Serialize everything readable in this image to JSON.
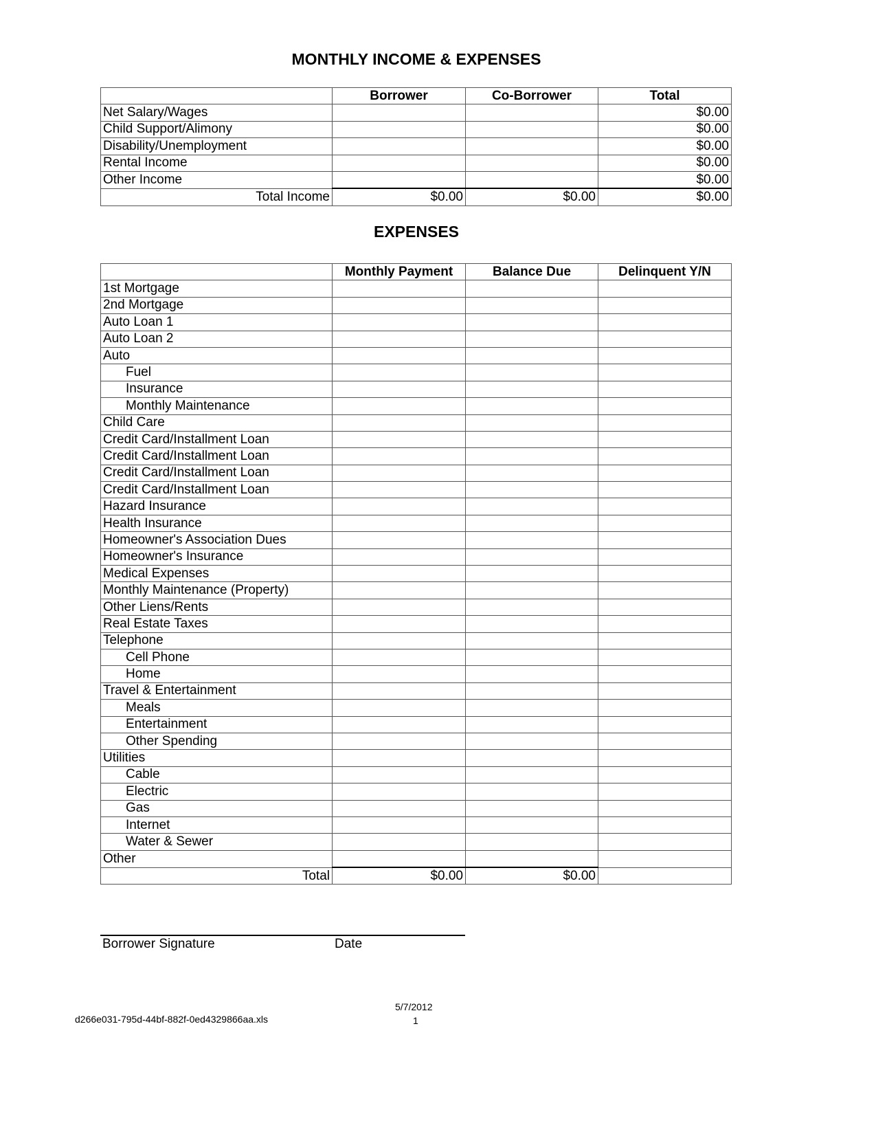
{
  "title": "MONTHLY INCOME & EXPENSES",
  "income": {
    "headers": [
      "",
      "Borrower",
      "Co-Borrower",
      "Total"
    ],
    "rows": [
      {
        "label": "Net Salary/Wages",
        "borrower": "",
        "co_borrower": "",
        "total": "$0.00"
      },
      {
        "label": "Child Support/Alimony",
        "borrower": "",
        "co_borrower": "",
        "total": "$0.00"
      },
      {
        "label": "Disability/Unemployment",
        "borrower": "",
        "co_borrower": "",
        "total": "$0.00"
      },
      {
        "label": "Rental Income",
        "borrower": "",
        "co_borrower": "",
        "total": "$0.00"
      },
      {
        "label": "Other Income",
        "borrower": "",
        "co_borrower": "",
        "total": "$0.00"
      }
    ],
    "total_row": {
      "label": "Total Income",
      "borrower": "$0.00",
      "co_borrower": "$0.00",
      "total": "$0.00"
    }
  },
  "expenses": {
    "title": "EXPENSES",
    "headers": [
      "",
      "Monthly Payment",
      "Balance Due",
      "Delinquent Y/N"
    ],
    "rows": [
      {
        "label": "1st Mortgage",
        "indent": false
      },
      {
        "label": "2nd Mortgage",
        "indent": false
      },
      {
        "label": "Auto Loan 1",
        "indent": false
      },
      {
        "label": "Auto Loan 2",
        "indent": false
      },
      {
        "label": "Auto",
        "indent": false
      },
      {
        "label": "Fuel",
        "indent": true
      },
      {
        "label": "Insurance",
        "indent": true
      },
      {
        "label": "Monthly Maintenance",
        "indent": true
      },
      {
        "label": "Child Care",
        "indent": false
      },
      {
        "label": "Credit Card/Installment Loan",
        "indent": false
      },
      {
        "label": "Credit Card/Installment Loan",
        "indent": false
      },
      {
        "label": "Credit Card/Installment Loan",
        "indent": false
      },
      {
        "label": "Credit Card/Installment Loan",
        "indent": false
      },
      {
        "label": "Hazard Insurance",
        "indent": false
      },
      {
        "label": "Health Insurance",
        "indent": false
      },
      {
        "label": "Homeowner's Association Dues",
        "indent": false
      },
      {
        "label": "Homeowner's Insurance",
        "indent": false
      },
      {
        "label": "Medical Expenses",
        "indent": false
      },
      {
        "label": "Monthly Maintenance (Property)",
        "indent": false
      },
      {
        "label": "Other Liens/Rents",
        "indent": false
      },
      {
        "label": "Real Estate Taxes",
        "indent": false
      },
      {
        "label": "Telephone",
        "indent": false
      },
      {
        "label": "Cell Phone",
        "indent": true
      },
      {
        "label": "Home",
        "indent": true
      },
      {
        "label": "Travel & Entertainment",
        "indent": false
      },
      {
        "label": "Meals",
        "indent": true
      },
      {
        "label": "Entertainment",
        "indent": true
      },
      {
        "label": "Other Spending",
        "indent": true
      },
      {
        "label": "Utilities",
        "indent": false
      },
      {
        "label": "Cable",
        "indent": true
      },
      {
        "label": "Electric",
        "indent": true
      },
      {
        "label": "Gas",
        "indent": true
      },
      {
        "label": "Internet",
        "indent": true
      },
      {
        "label": "Water & Sewer",
        "indent": true
      },
      {
        "label": "Other",
        "indent": false
      }
    ],
    "total_row": {
      "label": "Total",
      "monthly_payment": "$0.00",
      "balance_due": "$0.00",
      "delinquent": ""
    }
  },
  "signature": {
    "borrower_label": "Borrower Signature",
    "date_label": "Date"
  },
  "footer": {
    "filename": "d266e031-795d-44bf-882f-0ed4329866aa.xls",
    "date": "5/7/2012",
    "page": "1"
  }
}
